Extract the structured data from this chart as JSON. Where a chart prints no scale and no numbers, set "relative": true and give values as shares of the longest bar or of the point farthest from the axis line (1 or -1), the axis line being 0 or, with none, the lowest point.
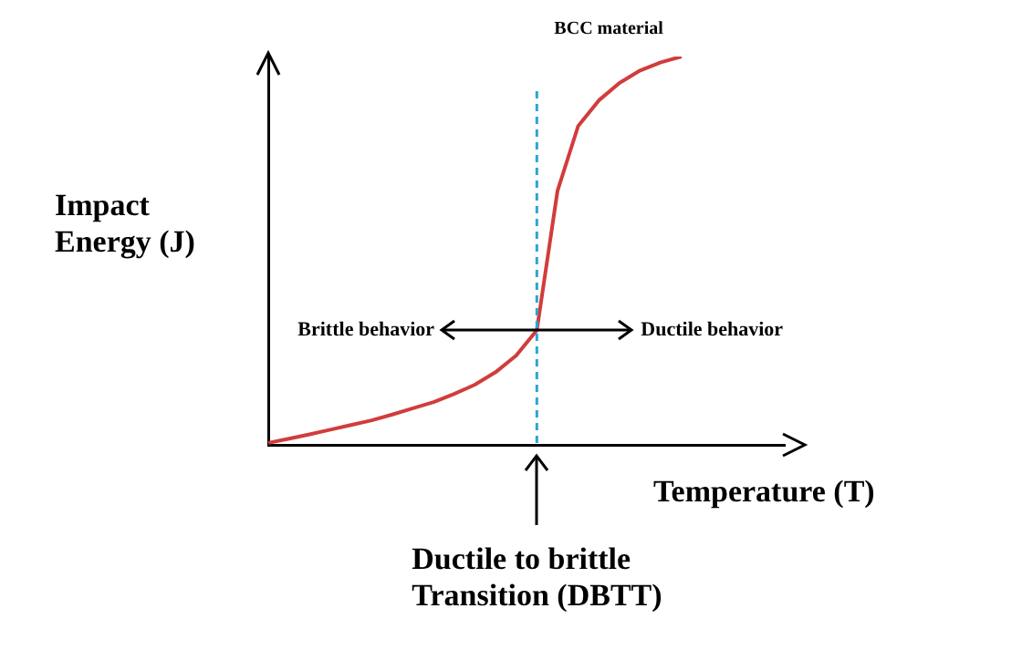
{
  "chart_data": {
    "type": "line",
    "relative": true,
    "xlabel": "Temperature (T)",
    "ylabel": "Impact\nEnergy (J)",
    "categories": [
      null,
      null,
      null,
      null,
      null,
      null,
      null,
      null,
      null,
      null,
      null,
      null,
      null,
      null,
      null,
      null,
      null,
      null,
      null,
      null,
      null,
      null,
      null,
      null,
      null,
      null
    ],
    "grid": false,
    "legend": false,
    "marker": "none",
    "line_style": "solid",
    "series": [
      {
        "name": "BCC material",
        "color": "#d23c3c",
        "values": [
          0.005,
          0.016,
          0.027,
          0.039,
          0.051,
          0.063,
          0.078,
          0.094,
          0.11,
          0.131,
          0.155,
          0.187,
          0.23,
          0.295,
          0.654,
          0.821,
          0.887,
          0.932,
          0.964,
          0.985,
          1,
          null,
          null,
          null,
          null,
          null
        ]
      }
    ],
    "ref_lines": [
      {
        "axis": "x",
        "label": "Ductile to brittle\nTransition (DBTT)",
        "color": "#2aa6cf",
        "line_style": "dashed"
      }
    ],
    "annotations": [
      "Brittle behavior",
      "Ductile behavior"
    ]
  }
}
